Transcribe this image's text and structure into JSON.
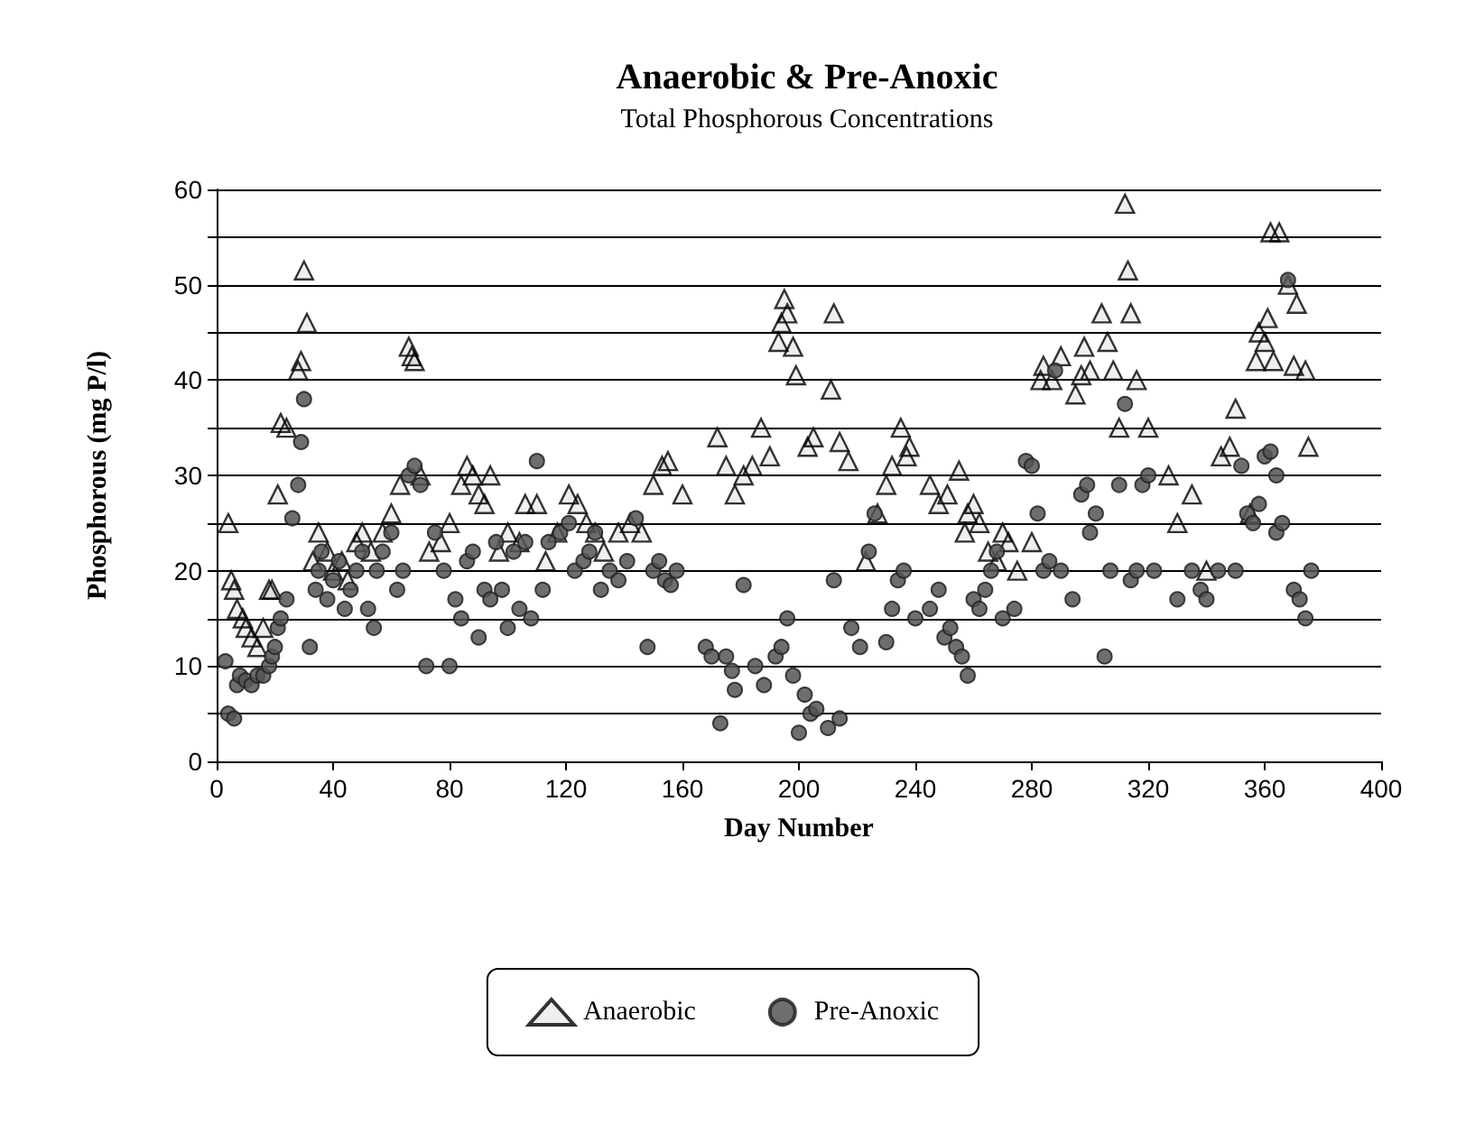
{
  "chart_data": {
    "type": "scatter",
    "title": "Anaerobic & Pre-Anoxic",
    "subtitle": "Total Phosphorous Concentrations",
    "xlabel": "Day Number",
    "ylabel": "Phosphorous (mg P/l)",
    "xlim": [
      0,
      400
    ],
    "xticks": [
      0,
      40,
      80,
      120,
      160,
      200,
      240,
      280,
      320,
      360,
      400
    ],
    "ylim": [
      0,
      60
    ],
    "yticks": [
      0,
      {
        "value": 5,
        "label": null
      },
      10,
      {
        "value": 15,
        "label": null
      },
      20,
      {
        "value": 25,
        "label": null
      },
      30,
      {
        "value": 35,
        "label": null
      },
      40,
      {
        "value": 45,
        "label": null
      },
      50,
      {
        "value": 55,
        "label": null
      },
      60
    ],
    "grid": "y",
    "legend": "bottom",
    "series": [
      {
        "name": "Anaerobic",
        "color": "#000000",
        "marker": "triangle",
        "x": [
          4,
          5,
          6,
          7,
          9,
          10,
          12,
          14,
          16,
          18,
          19,
          21,
          22,
          24,
          28,
          29,
          30,
          31,
          33,
          35,
          38,
          40,
          43,
          45,
          48,
          50,
          53,
          57,
          60,
          63,
          66,
          67,
          68,
          70,
          73,
          77,
          80,
          84,
          86,
          88,
          90,
          92,
          94,
          97,
          100,
          104,
          106,
          110,
          113,
          117,
          121,
          124,
          127,
          130,
          133,
          138,
          142,
          146,
          150,
          153,
          155,
          160,
          172,
          175,
          178,
          181,
          184,
          187,
          190,
          193,
          194,
          195,
          196,
          198,
          199,
          203,
          205,
          211,
          212,
          214,
          217,
          223,
          227,
          230,
          232,
          235,
          237,
          238,
          245,
          248,
          251,
          255,
          257,
          258,
          260,
          262,
          265,
          268,
          270,
          272,
          275,
          280,
          283,
          284,
          287,
          290,
          295,
          297,
          298,
          300,
          304,
          306,
          308,
          310,
          312,
          313,
          314,
          316,
          320,
          327,
          330,
          335,
          340,
          345,
          348,
          350,
          355,
          357,
          358,
          360,
          361,
          362,
          363,
          365,
          368,
          370,
          371,
          374,
          375
        ],
        "values": [
          25,
          19,
          18,
          16,
          15,
          14,
          13,
          12,
          14,
          18,
          18,
          28,
          35.5,
          35,
          41,
          42,
          51.5,
          46,
          21,
          24,
          22,
          20,
          21,
          19,
          23,
          24,
          22,
          24,
          26,
          29,
          43.5,
          42.5,
          42,
          30,
          22,
          23,
          25,
          29,
          31,
          30,
          28,
          27,
          30,
          22,
          24,
          23,
          27,
          27,
          21,
          24,
          28,
          27,
          25,
          24,
          22,
          24,
          25,
          24,
          29,
          31,
          31.5,
          28,
          34,
          31,
          28,
          30,
          31,
          35,
          32,
          44,
          46,
          48.5,
          47,
          43.5,
          40.5,
          33,
          34,
          39,
          47,
          33.5,
          31.5,
          21,
          26,
          29,
          31,
          35,
          32,
          33,
          29,
          27,
          28,
          30.5,
          24,
          26,
          27,
          25,
          22,
          21,
          24,
          23,
          20,
          23,
          40,
          41.5,
          40,
          42.5,
          38.5,
          40.5,
          43.5,
          41,
          47,
          44,
          41,
          35,
          58.5,
          51.5,
          47,
          40,
          35,
          30,
          25,
          28,
          20,
          32,
          33,
          37,
          26,
          42,
          45,
          44,
          46.5,
          55.5,
          42,
          55.5,
          50,
          41.5,
          48,
          41,
          33
        ]
      },
      {
        "name": "Pre-Anoxic",
        "color": "#555555",
        "marker": "circle",
        "x": [
          3,
          4,
          6,
          7,
          8,
          10,
          12,
          14,
          16,
          18,
          19,
          20,
          21,
          22,
          24,
          26,
          28,
          29,
          30,
          32,
          34,
          35,
          36,
          38,
          40,
          42,
          44,
          46,
          48,
          50,
          52,
          54,
          55,
          57,
          60,
          62,
          64,
          66,
          68,
          70,
          72,
          75,
          78,
          80,
          82,
          84,
          86,
          88,
          90,
          92,
          94,
          96,
          98,
          100,
          102,
          104,
          106,
          108,
          110,
          112,
          114,
          118,
          121,
          123,
          126,
          128,
          130,
          132,
          135,
          138,
          141,
          144,
          148,
          150,
          152,
          154,
          156,
          158,
          168,
          170,
          173,
          175,
          177,
          178,
          181,
          185,
          188,
          192,
          194,
          196,
          198,
          200,
          202,
          204,
          206,
          210,
          212,
          214,
          218,
          221,
          224,
          226,
          230,
          232,
          234,
          236,
          240,
          245,
          248,
          250,
          252,
          254,
          256,
          258,
          260,
          262,
          264,
          266,
          268,
          270,
          274,
          278,
          280,
          282,
          284,
          286,
          288,
          290,
          294,
          297,
          299,
          300,
          302,
          305,
          307,
          310,
          312,
          314,
          316,
          318,
          320,
          322,
          330,
          335,
          338,
          340,
          344,
          350,
          352,
          354,
          356,
          358,
          360,
          362,
          364,
          364,
          366,
          368,
          370,
          372,
          374,
          376
        ],
        "values": [
          10.5,
          5,
          4.5,
          8,
          9,
          8.5,
          8,
          9,
          9,
          10,
          11,
          12,
          14,
          15,
          17,
          25.5,
          29,
          33.5,
          38,
          12,
          18,
          20,
          22,
          17,
          19,
          21,
          16,
          18,
          20,
          22,
          16,
          14,
          20,
          22,
          24,
          18,
          20,
          30,
          31,
          29,
          10,
          24,
          20,
          10,
          17,
          15,
          21,
          22,
          13,
          18,
          17,
          23,
          18,
          14,
          22,
          16,
          23,
          15,
          31.5,
          18,
          23,
          24,
          25,
          20,
          21,
          22,
          24,
          18,
          20,
          19,
          21,
          25.5,
          12,
          20,
          21,
          19,
          18.5,
          20,
          12,
          11,
          4,
          11,
          9.5,
          7.5,
          18.5,
          10,
          8,
          11,
          12,
          15,
          9,
          3,
          7,
          5,
          5.5,
          3.5,
          19,
          4.5,
          14,
          12,
          22,
          26,
          12.5,
          16,
          19,
          20,
          15,
          16,
          18,
          13,
          14,
          12,
          11,
          9,
          17,
          16,
          18,
          20,
          22,
          15,
          16,
          31.5,
          31,
          26,
          20,
          21,
          41,
          20,
          17,
          28,
          29,
          24,
          26,
          11,
          20,
          29,
          37.5,
          19,
          20,
          29,
          30,
          20,
          17,
          20,
          18,
          17,
          20,
          20,
          31,
          26,
          25,
          27,
          32,
          32.5,
          24,
          30,
          25,
          50.5,
          18,
          17,
          15,
          20
        ]
      }
    ]
  }
}
